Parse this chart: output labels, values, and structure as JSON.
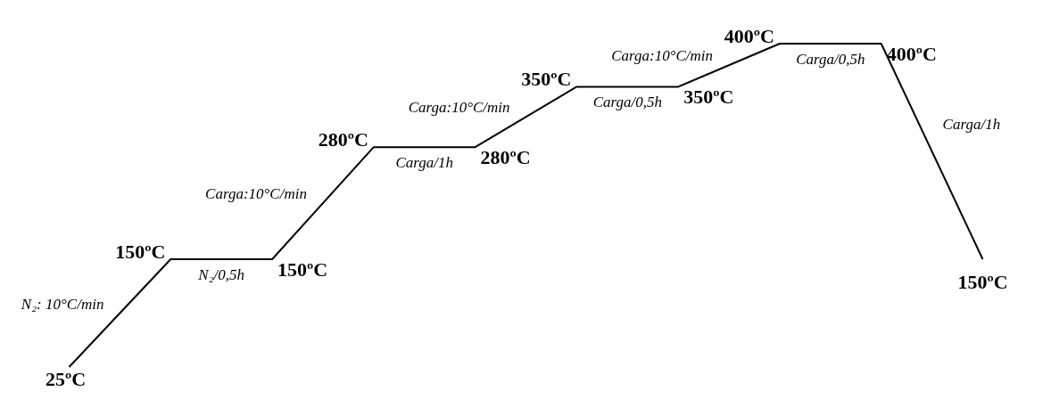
{
  "chart_data": {
    "type": "line",
    "categories": [
      null,
      null,
      null,
      null,
      null,
      null,
      null,
      null,
      null,
      null
    ],
    "series": [
      {
        "color": "#000000",
        "values": [
          25,
          150,
          150,
          280,
          280,
          350,
          350,
          400,
          400,
          150
        ],
        "value_labels": [
          "25ºC",
          "150ºC",
          "150ºC",
          "280ºC",
          "280ºC",
          "350ºC",
          "350ºC",
          "400ºC",
          "400ºC",
          "150ºC"
        ]
      }
    ],
    "annotations": [
      "N₂: 10°C/min",
      "N₂/0,5h",
      "Carga:10°C/min",
      "Carga/1h",
      "Carga:10°C/min",
      "Carga/0,5h",
      "Carga:10°C/min",
      "Carga/0,5h",
      "Carga/1h"
    ],
    "marker": "none"
  }
}
